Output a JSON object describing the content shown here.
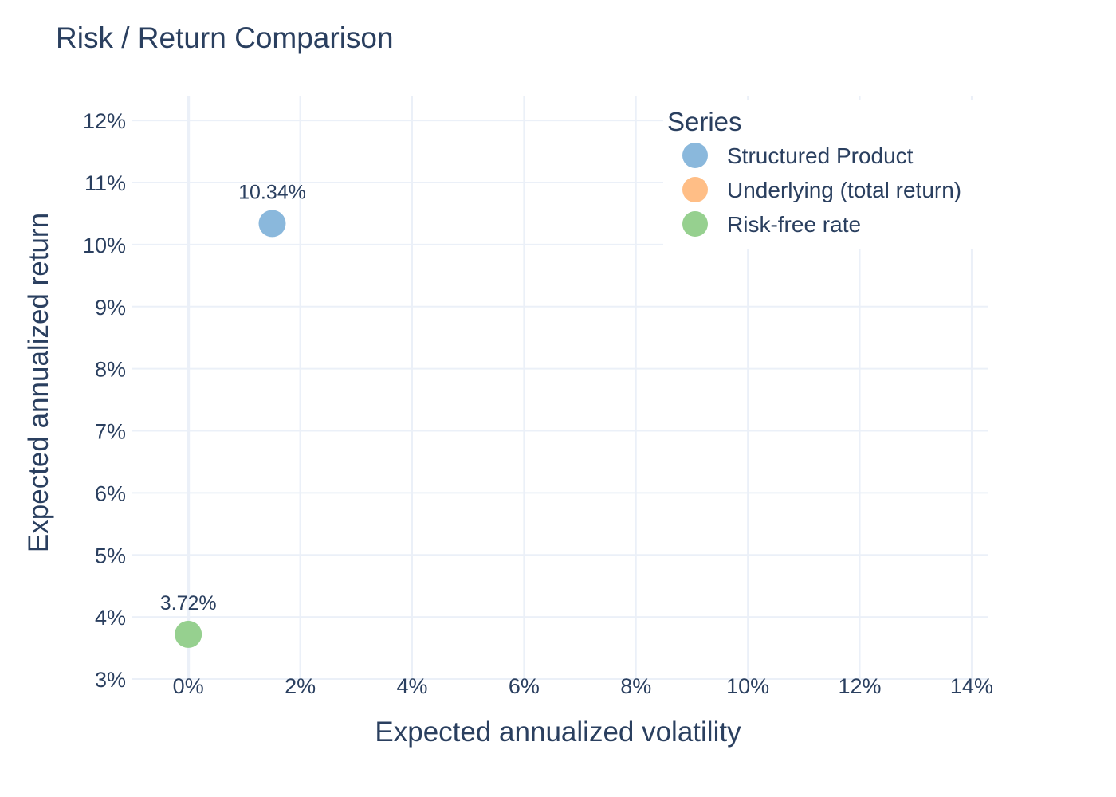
{
  "chart_data": {
    "type": "scatter",
    "title": "Risk / Return Comparison",
    "xlabel": "Expected annualized volatility",
    "ylabel": "Expected annualized return",
    "xlim": [
      -1,
      14.3
    ],
    "ylim": [
      3,
      12.4
    ],
    "x_ticks": [
      0,
      2,
      4,
      6,
      8,
      10,
      12,
      14
    ],
    "x_tick_labels": [
      "0%",
      "2%",
      "4%",
      "6%",
      "8%",
      "10%",
      "12%",
      "14%"
    ],
    "y_ticks": [
      3,
      4,
      5,
      6,
      7,
      8,
      9,
      10,
      11,
      12
    ],
    "y_tick_labels": [
      "3%",
      "4%",
      "5%",
      "6%",
      "7%",
      "8%",
      "9%",
      "10%",
      "11%",
      "12%"
    ],
    "grid": true,
    "legend": {
      "title": "Series",
      "placement": "top-right"
    },
    "series": [
      {
        "name": "Structured Product",
        "color": "#8ab8dc",
        "points": [
          {
            "x": 1.5,
            "y": 10.34,
            "label": "10.34%"
          }
        ]
      },
      {
        "name": "Underlying (total return)",
        "color": "#ffbe86",
        "points": []
      },
      {
        "name": "Risk-free rate",
        "color": "#96d08f",
        "points": [
          {
            "x": 0.0,
            "y": 3.72,
            "label": "3.72%"
          }
        ]
      }
    ]
  }
}
